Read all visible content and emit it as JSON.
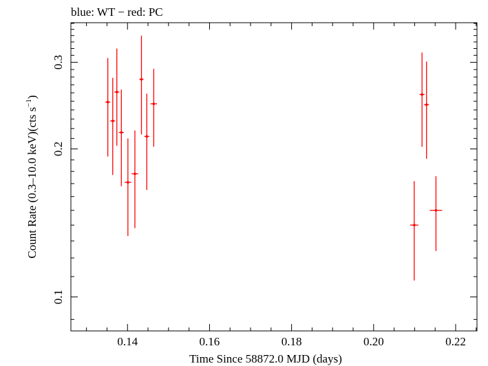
{
  "chart_data": {
    "type": "scatter",
    "title": "blue: WT − red: PC",
    "xlabel": "Time Since 58872.0 MJD (days)",
    "ylabel_main": "Count Rate (0.3–10.0 keV)(cts s",
    "ylabel_sup": "−1",
    "ylabel_close": ")",
    "xlim": [
      0.1262,
      0.2252
    ],
    "ylim": [
      0.0853,
      0.3611
    ],
    "ylog": true,
    "grid": false,
    "x_ticks": [
      {
        "value": 0.14,
        "label": "0.14"
      },
      {
        "value": 0.16,
        "label": "0.16"
      },
      {
        "value": 0.18,
        "label": "0.18"
      },
      {
        "value": 0.2,
        "label": "0.20"
      },
      {
        "value": 0.22,
        "label": "0.22"
      }
    ],
    "x_minor_step": 0.005,
    "y_ticks": [
      {
        "value": 0.1,
        "label": "0.1"
      },
      {
        "value": 0.2,
        "label": "0.2"
      },
      {
        "value": 0.3,
        "label": "0.3"
      }
    ],
    "y_minor": [
      0.09,
      0.11,
      0.12,
      0.13,
      0.14,
      0.15,
      0.16,
      0.17,
      0.18,
      0.19,
      0.21,
      0.22,
      0.23,
      0.24,
      0.25,
      0.26,
      0.27,
      0.28,
      0.29,
      0.31,
      0.32,
      0.33,
      0.34,
      0.35,
      0.36
    ],
    "series": [
      {
        "color": "#ff0000",
        "points": [
          {
            "x": 0.1352,
            "xerr": 0.0006,
            "y": 0.249,
            "ylo": 0.193,
            "yhi": 0.306
          },
          {
            "x": 0.1364,
            "xerr": 0.0006,
            "y": 0.228,
            "ylo": 0.177,
            "yhi": 0.279
          },
          {
            "x": 0.1374,
            "xerr": 0.0006,
            "y": 0.261,
            "ylo": 0.203,
            "yhi": 0.32
          },
          {
            "x": 0.1385,
            "xerr": 0.0006,
            "y": 0.216,
            "ylo": 0.168,
            "yhi": 0.264
          },
          {
            "x": 0.1401,
            "xerr": 0.0008,
            "y": 0.171,
            "ylo": 0.133,
            "yhi": 0.21
          },
          {
            "x": 0.1418,
            "xerr": 0.0008,
            "y": 0.178,
            "ylo": 0.138,
            "yhi": 0.218
          },
          {
            "x": 0.1434,
            "xerr": 0.0005,
            "y": 0.277,
            "ylo": 0.214,
            "yhi": 0.34
          },
          {
            "x": 0.1447,
            "xerr": 0.0006,
            "y": 0.212,
            "ylo": 0.165,
            "yhi": 0.259
          },
          {
            "x": 0.1464,
            "xerr": 0.0008,
            "y": 0.247,
            "ylo": 0.202,
            "yhi": 0.291
          },
          {
            "x": 0.2099,
            "xerr": 0.001,
            "y": 0.14,
            "ylo": 0.108,
            "yhi": 0.172
          },
          {
            "x": 0.2118,
            "xerr": 0.0006,
            "y": 0.258,
            "ylo": 0.202,
            "yhi": 0.314
          },
          {
            "x": 0.2129,
            "xerr": 0.0006,
            "y": 0.246,
            "ylo": 0.191,
            "yhi": 0.301
          },
          {
            "x": 0.2152,
            "xerr": 0.0015,
            "y": 0.15,
            "ylo": 0.124,
            "yhi": 0.176
          }
        ]
      }
    ]
  }
}
